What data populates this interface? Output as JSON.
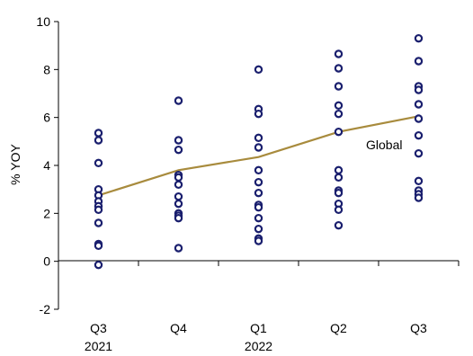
{
  "chart_data": {
    "type": "scatter",
    "ylabel": "% YOY",
    "ylim": [
      -2,
      10
    ],
    "yticks": [
      "-2",
      "0",
      "2",
      "4",
      "6",
      "8",
      "10"
    ],
    "categories": [
      {
        "label": "Q3",
        "sublabel": "2021"
      },
      {
        "label": "Q4",
        "sublabel": ""
      },
      {
        "label": "Q1",
        "sublabel": "2022"
      },
      {
        "label": "Q2",
        "sublabel": ""
      },
      {
        "label": "Q3",
        "sublabel": ""
      }
    ],
    "scatter_values": [
      [
        5.35,
        5.05,
        4.1,
        3.0,
        2.75,
        2.5,
        2.3,
        2.15,
        1.6,
        0.72,
        0.65,
        -0.15
      ],
      [
        6.7,
        5.05,
        4.65,
        3.6,
        3.5,
        3.2,
        2.7,
        2.4,
        2.0,
        1.9,
        1.8,
        0.55
      ],
      [
        8.0,
        6.35,
        6.15,
        5.15,
        4.75,
        3.8,
        3.3,
        2.85,
        2.35,
        2.25,
        1.8,
        1.35,
        0.95,
        0.85
      ],
      [
        8.65,
        8.05,
        7.3,
        6.5,
        6.15,
        5.4,
        3.8,
        3.5,
        2.95,
        2.85,
        2.4,
        2.15,
        1.5
      ],
      [
        9.3,
        8.35,
        7.3,
        7.15,
        6.55,
        5.95,
        5.25,
        4.5,
        3.35,
        2.95,
        2.8,
        2.65
      ]
    ],
    "series": [
      {
        "name": "Global",
        "values": [
          2.75,
          3.8,
          4.35,
          5.4,
          6.05
        ],
        "color": "#A88B3D"
      }
    ],
    "marker_color": "#1A1F6E",
    "grid": false,
    "legend": "none"
  }
}
